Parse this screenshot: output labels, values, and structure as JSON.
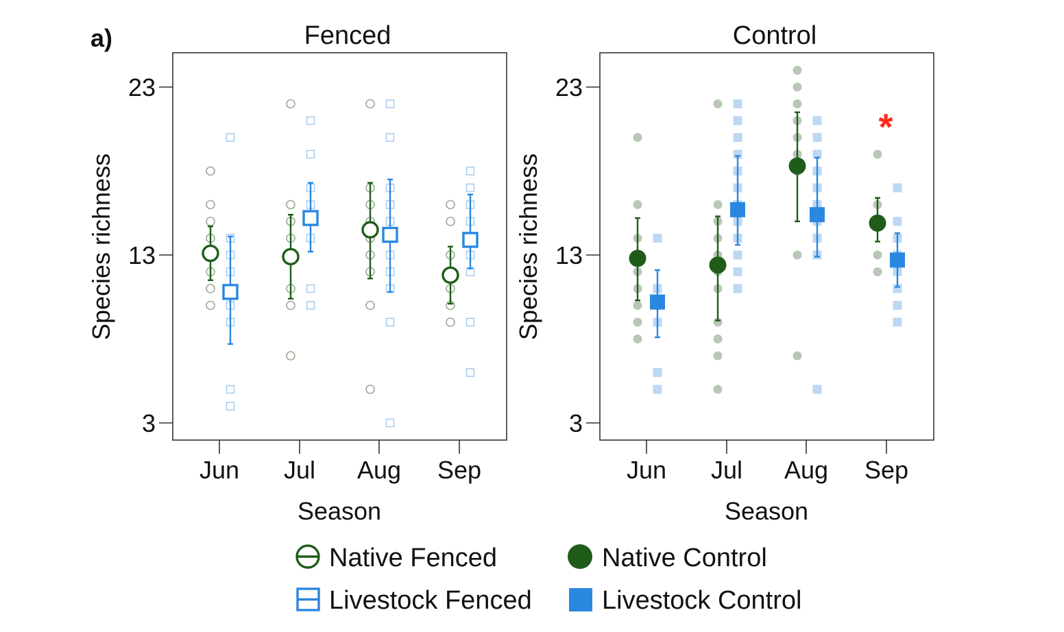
{
  "figure": {
    "label": "a)",
    "colors": {
      "native": "#1f5c1a",
      "livestock": "#2a87e0",
      "native_raw_fenced": "#9aab95",
      "livestock_raw_fenced": "#a9cdf2",
      "native_raw_control": "#b9c7b6",
      "livestock_raw_control": "#bcd8f5",
      "star": "#ff2a1a"
    }
  },
  "legend": {
    "placement": "bottom",
    "items": [
      {
        "label": "Native Fenced",
        "marker": "open-circle",
        "color": "#1f5c1a"
      },
      {
        "label": "Native Control",
        "marker": "filled-circle",
        "color": "#1f5c1a"
      },
      {
        "label": "Livestock Fenced",
        "marker": "open-square",
        "color": "#2a87e0"
      },
      {
        "label": "Livestock Control",
        "marker": "filled-square",
        "color": "#2a87e0"
      }
    ]
  },
  "chart_data": [
    {
      "type": "scatter",
      "title": "Fenced",
      "xlabel": "Season",
      "ylabel": "Species richness",
      "categories": [
        "Jun",
        "Jul",
        "Aug",
        "Sep"
      ],
      "yticks": [
        3,
        13,
        23
      ],
      "ylim": [
        2,
        25
      ],
      "series": [
        {
          "name": "Native Fenced",
          "marker": "open-circle",
          "mean": [
            13.1,
            12.9,
            14.5,
            11.8
          ],
          "ci_low": [
            11.5,
            10.4,
            11.6,
            10.1
          ],
          "ci_high": [
            14.7,
            15.4,
            17.3,
            13.5
          ],
          "raw": [
            [
              10,
              11,
              12,
              13,
              14,
              15,
              16,
              18
            ],
            [
              7,
              10,
              11,
              13,
              14,
              15,
              16,
              22
            ],
            [
              5,
              10,
              12,
              13,
              14,
              15,
              16,
              17,
              22
            ],
            [
              9,
              10,
              11,
              12,
              13,
              15,
              16
            ]
          ]
        },
        {
          "name": "Livestock Fenced",
          "marker": "open-square",
          "mean": [
            10.8,
            15.2,
            14.2,
            13.9
          ],
          "ci_low": [
            7.7,
            13.2,
            10.8,
            12.2
          ],
          "ci_high": [
            14.1,
            17.3,
            17.5,
            16.6
          ],
          "raw": [
            [
              4,
              5,
              9,
              10,
              11,
              12,
              13,
              14,
              20
            ],
            [
              10,
              11,
              14,
              15,
              16,
              17,
              19,
              21
            ],
            [
              3,
              9,
              11,
              12,
              13,
              14,
              15,
              16,
              17,
              20,
              22
            ],
            [
              6,
              9,
              12,
              13,
              14,
              15,
              16,
              17,
              18
            ]
          ]
        }
      ]
    },
    {
      "type": "scatter",
      "title": "Control",
      "xlabel": "Season",
      "ylabel": "Species richness",
      "categories": [
        "Jun",
        "Jul",
        "Aug",
        "Sep"
      ],
      "yticks": [
        3,
        13,
        23
      ],
      "ylim": [
        2,
        25
      ],
      "annotations": [
        {
          "text": "*",
          "category": "Sep",
          "y": 21.1
        }
      ],
      "series": [
        {
          "name": "Native Control",
          "marker": "filled-circle",
          "mean": [
            12.8,
            12.4,
            18.3,
            14.9
          ],
          "ci_low": [
            10.3,
            9.1,
            15.0,
            13.8
          ],
          "ci_high": [
            15.2,
            15.3,
            21.5,
            16.4
          ],
          "raw": [
            [
              8,
              9,
              10,
              11,
              12,
              13,
              14,
              16,
              20
            ],
            [
              5,
              7,
              8,
              9,
              11,
              12,
              13,
              14,
              15,
              16,
              22
            ],
            [
              7,
              13,
              18,
              19,
              20,
              21,
              22,
              23,
              24
            ],
            [
              12,
              13,
              16,
              19
            ]
          ]
        },
        {
          "name": "Livestock Control",
          "marker": "filled-square",
          "mean": [
            10.2,
            15.7,
            15.4,
            12.7
          ],
          "ci_low": [
            8.1,
            13.6,
            12.9,
            11.1
          ],
          "ci_high": [
            12.1,
            18.9,
            18.8,
            14.3
          ],
          "raw": [
            [
              5,
              6,
              9,
              10,
              11,
              14
            ],
            [
              11,
              12,
              13,
              14,
              15,
              16,
              17,
              18,
              19,
              20,
              21,
              22
            ],
            [
              5,
              13,
              14,
              15,
              16,
              17,
              18,
              19,
              20,
              21
            ],
            [
              9,
              10,
              11,
              12,
              13,
              14,
              15,
              17
            ]
          ]
        }
      ]
    }
  ]
}
